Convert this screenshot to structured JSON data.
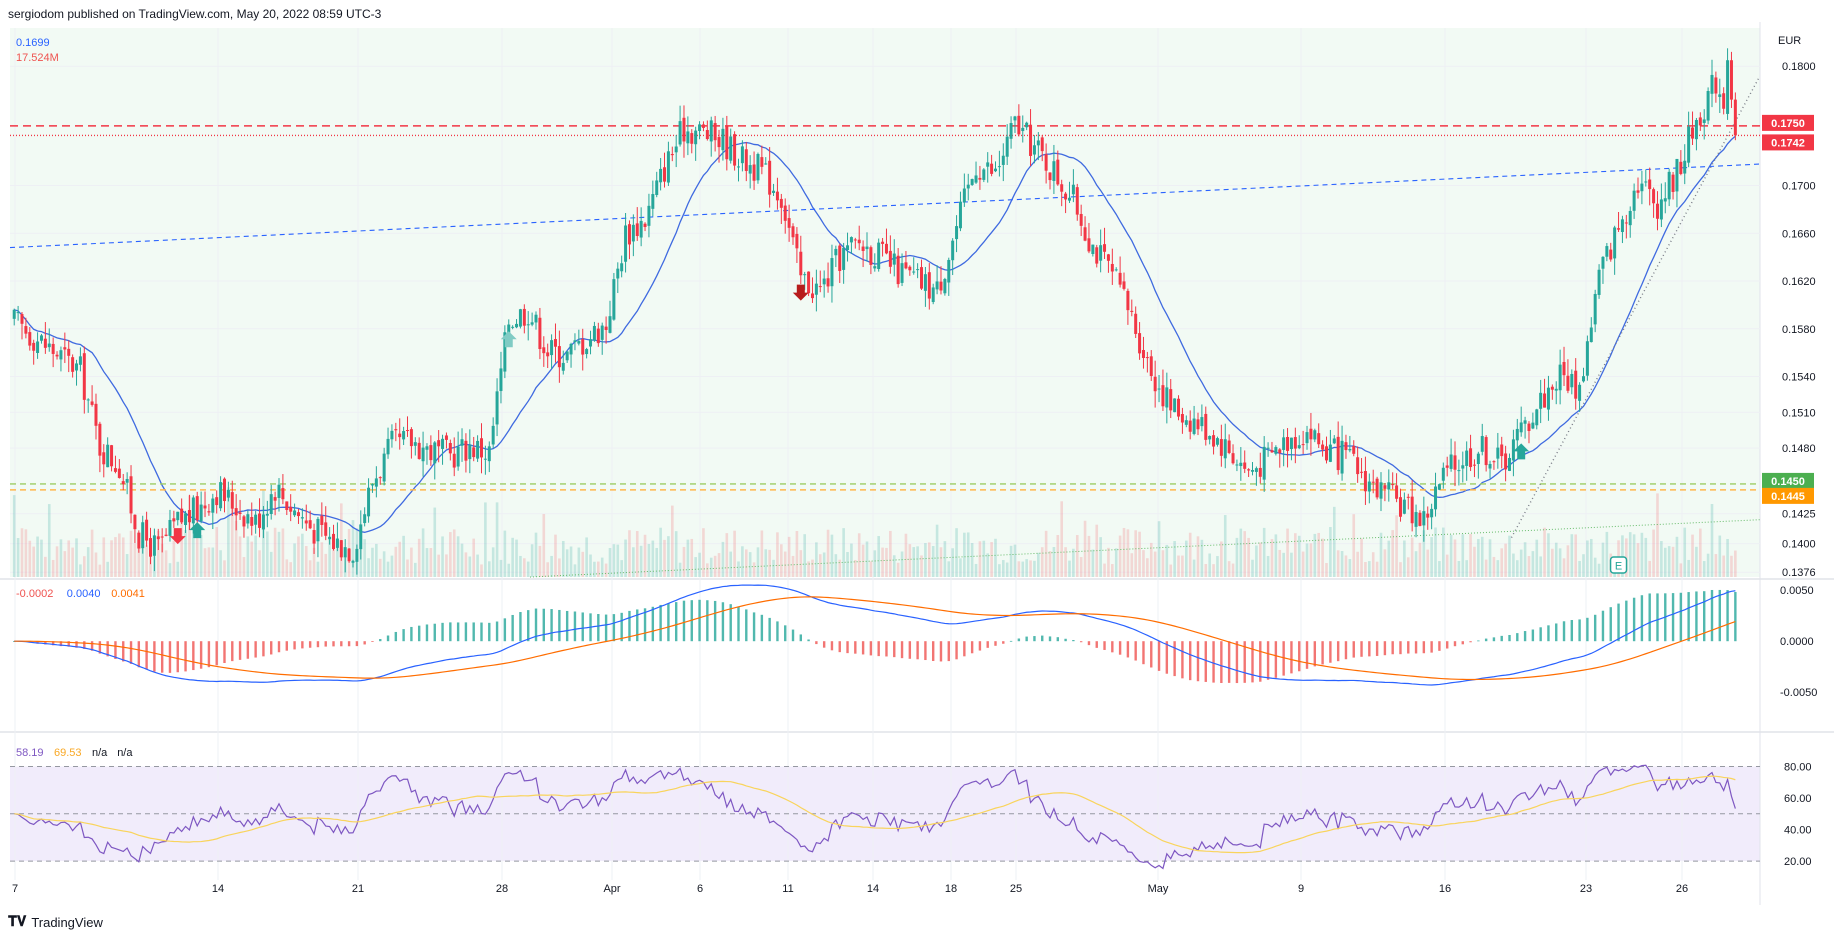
{
  "header": {
    "publish_line": "sergiodom published on TradingView.com, May 20, 2022 08:59 UTC-3"
  },
  "footer": {
    "logo_icon": "tradingview-logo-icon",
    "brand": "TradingView"
  },
  "chart_data": [
    {
      "type": "candlestick",
      "pane": "price",
      "currency": "EUR",
      "readout": {
        "price": "0.1699",
        "volume": "17.524M",
        "price_color": "#2962ff",
        "volume_color": "#ef5350"
      },
      "y_ticks": [
        "0.1800",
        "0.1700",
        "0.1660",
        "0.1620",
        "0.1580",
        "0.1540",
        "0.1510",
        "0.1480",
        "0.1425",
        "0.1400",
        "0.1376"
      ],
      "ylim": [
        0.1372,
        0.1832
      ],
      "x_ticks": [
        "7",
        "14",
        "21",
        "28",
        "Apr",
        "6",
        "11",
        "14",
        "18",
        "25",
        "May",
        "9",
        "16",
        "23",
        "26"
      ],
      "price_labels": [
        {
          "value": "0.1750",
          "color": "#f23645",
          "style": "dashed"
        },
        {
          "value": "0.1742",
          "color": "#f23645",
          "style": "dotted"
        },
        {
          "value": "0.1450",
          "color": "#4caf50",
          "style": "dashed"
        },
        {
          "value": "0.1445",
          "color": "#ff9800",
          "style": "dashed"
        }
      ],
      "close_path": [
        [
          3,
          0.1545
        ],
        [
          4,
          0.1482
        ],
        [
          5,
          0.1465
        ],
        [
          6,
          0.1408
        ],
        [
          7,
          0.1395
        ],
        [
          8,
          0.1418
        ],
        [
          9,
          0.1428
        ],
        [
          10,
          0.1445
        ],
        [
          11,
          0.1432
        ],
        [
          12,
          0.1418
        ],
        [
          13,
          0.1448
        ],
        [
          14,
          0.1428
        ],
        [
          15,
          0.1412
        ],
        [
          16,
          0.1402
        ],
        [
          17,
          0.1396
        ],
        [
          18,
          0.1452
        ],
        [
          19,
          0.1482
        ],
        [
          20,
          0.1486
        ],
        [
          21,
          0.1478
        ],
        [
          22,
          0.1474
        ],
        [
          23,
          0.1482
        ],
        [
          24,
          0.1476
        ],
        [
          25,
          0.1588
        ],
        [
          26,
          0.1596
        ],
        [
          27,
          0.1562
        ],
        [
          28,
          0.1558
        ],
        [
          29,
          0.1572
        ],
        [
          30,
          0.1584
        ],
        [
          31,
          0.166
        ],
        [
          32,
          0.1672
        ],
        [
          33,
          0.1715
        ],
        [
          34,
          0.1748
        ],
        [
          35,
          0.1745
        ],
        [
          36,
          0.1738
        ],
        [
          37,
          0.1722
        ],
        [
          38,
          0.1712
        ],
        [
          39,
          0.1692
        ],
        [
          40,
          0.1622
        ],
        [
          41,
          0.1612
        ],
        [
          42,
          0.164
        ],
        [
          43,
          0.1652
        ],
        [
          44,
          0.1642
        ],
        [
          45,
          0.1628
        ],
        [
          46,
          0.162
        ],
        [
          47,
          0.1612
        ],
        [
          48,
          0.1665
        ],
        [
          49,
          0.1718
        ],
        [
          50,
          0.171
        ],
        [
          51,
          0.1752
        ],
        [
          52,
          0.1732
        ],
        [
          53,
          0.1712
        ],
        [
          54,
          0.1688
        ],
        [
          55,
          0.165
        ],
        [
          56,
          0.1625
        ],
        [
          57,
          0.159
        ],
        [
          58,
          0.1545
        ],
        [
          59,
          0.1515
        ],
        [
          60,
          0.1505
        ],
        [
          61,
          0.1495
        ],
        [
          62,
          0.1478
        ],
        [
          63,
          0.146
        ],
        [
          64,
          0.1472
        ],
        [
          65,
          0.1488
        ],
        [
          66,
          0.1495
        ],
        [
          67,
          0.1478
        ],
        [
          68,
          0.1472
        ],
        [
          69,
          0.1455
        ],
        [
          70,
          0.144
        ],
        [
          71,
          0.1432
        ],
        [
          72,
          0.142
        ],
        [
          73,
          0.1456
        ],
        [
          74,
          0.1472
        ],
        [
          75,
          0.148
        ],
        [
          76,
          0.1468
        ],
        [
          77,
          0.1494
        ],
        [
          78,
          0.152
        ],
        [
          79,
          0.1542
        ],
        [
          80,
          0.153
        ],
        [
          81,
          0.1625
        ],
        [
          82,
          0.1665
        ],
        [
          83,
          0.1705
        ],
        [
          84,
          0.1685
        ],
        [
          85,
          0.1712
        ],
        [
          86,
          0.1755
        ],
        [
          87,
          0.1788
        ],
        [
          88,
          0.1748
        ]
      ],
      "signal_markers": [
        {
          "day": 8,
          "type": "sell",
          "color": "#f23645"
        },
        {
          "day": 9,
          "type": "buy",
          "color": "#26a69a"
        },
        {
          "day": 25,
          "type": "buy",
          "color": "#80cbc4"
        },
        {
          "day": 40,
          "type": "sell",
          "color": "#b71c1c"
        },
        {
          "day": 77,
          "type": "buy",
          "color": "#26a69a"
        }
      ],
      "earnings_marker": {
        "day": 82,
        "label": "E"
      },
      "colors": {
        "up": "#26a69a",
        "down": "#f23645",
        "ma": "#3f6ae0",
        "trend": "#2962ff"
      }
    },
    {
      "type": "line",
      "pane": "macd",
      "readout": [
        {
          "text": "-0.0002",
          "color": "#ef5350"
        },
        {
          "text": "0.0040",
          "color": "#2962ff"
        },
        {
          "text": "0.0041",
          "color": "#ff6d00"
        }
      ],
      "y_ticks": [
        "0.0050",
        "0.0000",
        "-0.0050"
      ],
      "ylim": [
        -0.0087,
        0.0058
      ],
      "series": [
        {
          "line": "macd",
          "color": "#2962ff"
        },
        {
          "line": "signal",
          "color": "#ff6d00"
        }
      ]
    },
    {
      "type": "line",
      "pane": "rsi",
      "readout": [
        {
          "text": "58.19",
          "color": "#7e57c2"
        },
        {
          "text": "69.53",
          "color": "#f9a825"
        },
        {
          "text": "n/a",
          "color": "#131722"
        },
        {
          "text": "n/a",
          "color": "#131722"
        }
      ],
      "y_ticks": [
        "80.00",
        "60.00",
        "40.00",
        "20.00"
      ],
      "ylim": [
        8,
        100
      ],
      "series": [
        {
          "line": "rsi",
          "color": "#7e57c2"
        },
        {
          "line": "rsi-ma",
          "color": "#f9d45c"
        }
      ]
    }
  ]
}
